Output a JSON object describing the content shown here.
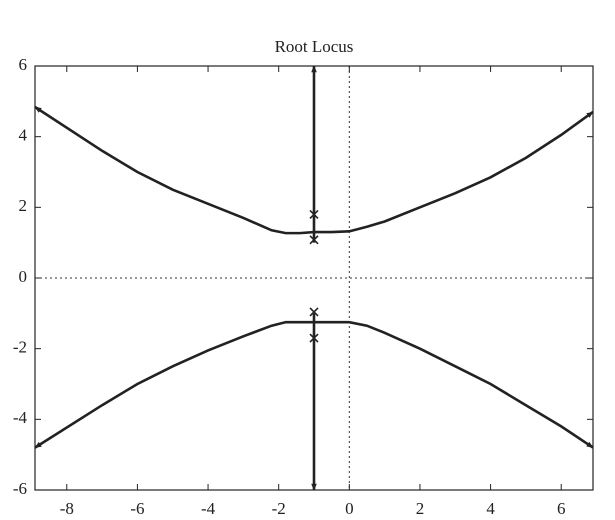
{
  "chart_data": {
    "type": "line",
    "title": "Root Locus",
    "xlim": [
      -8.9,
      6.9
    ],
    "ylim": [
      -6,
      6
    ],
    "xticks": [
      -8,
      -6,
      -4,
      -2,
      0,
      2,
      4,
      6
    ],
    "yticks": [
      -6,
      -4,
      -2,
      0,
      2,
      4,
      6
    ],
    "color": "#222222",
    "series": [
      {
        "x": [
          -8.9,
          -7,
          -6,
          -5,
          -4,
          -3,
          -2.2,
          -1.8,
          -1.4,
          -1,
          -0.5,
          0,
          0.5,
          1,
          2,
          3,
          4,
          5,
          6,
          6.9
        ],
        "values": [
          4.84,
          3.6,
          3.0,
          2.5,
          2.1,
          1.7,
          1.35,
          1.27,
          1.27,
          1.3,
          1.3,
          1.32,
          1.45,
          1.6,
          2.0,
          2.4,
          2.85,
          3.4,
          4.05,
          4.7
        ]
      },
      {
        "x": [
          -8.9,
          -7,
          -6,
          -5,
          -4,
          -3,
          -2.2,
          -1.8,
          -1,
          0,
          0.5,
          1,
          2,
          3,
          4,
          5,
          6,
          6.9
        ],
        "values": [
          -4.8,
          -3.6,
          -3.0,
          -2.5,
          -2.05,
          -1.65,
          -1.35,
          -1.25,
          -1.25,
          -1.25,
          -1.35,
          -1.55,
          -2.0,
          -2.5,
          -3.0,
          -3.6,
          -4.2,
          -4.8
        ]
      },
      {
        "x": [
          -1,
          -1,
          -1
        ],
        "values": [
          1.0,
          1.8,
          6
        ]
      },
      {
        "x": [
          -1,
          -1,
          -1
        ],
        "values": [
          -1.0,
          -1.7,
          -6
        ]
      }
    ],
    "poles": {
      "x": [
        -1,
        -1,
        -1,
        -1
      ],
      "y": [
        1.8,
        1.08,
        -0.96,
        -1.7
      ]
    }
  }
}
